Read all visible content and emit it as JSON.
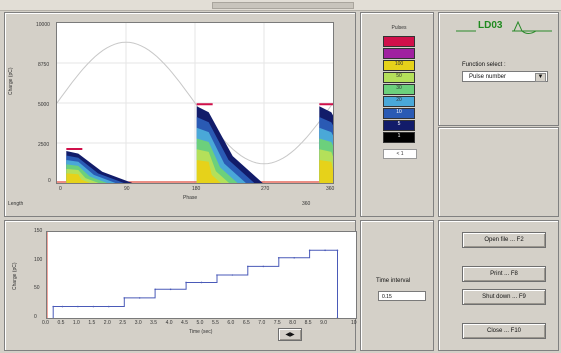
{
  "logo": {
    "text": "LD03"
  },
  "top_chart": {
    "ylabel": "Charge (pC)",
    "xlabel": "Phase",
    "y_ticks": [
      "10000",
      "8750",
      "5000",
      "2500",
      "0"
    ],
    "x_ticks": [
      "0",
      "90",
      "180",
      "270",
      "360"
    ],
    "corner_label": "Length"
  },
  "legend": {
    "title": "Pulses",
    "entries": [
      {
        "color": "#d0104a",
        "label": ""
      },
      {
        "color": "#a020a0",
        "label": ""
      },
      {
        "color": "#e6d21a",
        "label": "100"
      },
      {
        "color": "#b4e05a",
        "label": "50"
      },
      {
        "color": "#6cd07c",
        "label": "30"
      },
      {
        "color": "#4aa8d8",
        "label": "20"
      },
      {
        "color": "#2a5ab4",
        "label": "10"
      },
      {
        "color": "#121c6a",
        "label": "5"
      },
      {
        "color": "#000000",
        "label": "1"
      }
    ],
    "bottom_label": "< 1"
  },
  "function_select": {
    "label": "Function select :",
    "value": "Pulse number"
  },
  "bottom_chart": {
    "ylabel": "Charge (pC)",
    "xlabel": "Time (sec)",
    "y_ticks": [
      "150",
      "100",
      "50",
      "0"
    ],
    "x_ticks": [
      "0.0",
      "0.5",
      "1.0",
      "1.5",
      "2.0",
      "2.5",
      "3.0",
      "3.5",
      "4.0",
      "4.5",
      "5.0",
      "5.5",
      "6.0",
      "6.5",
      "7.0",
      "7.5",
      "8.0",
      "8.5",
      "9.0",
      "10"
    ]
  },
  "time_interval": {
    "label": "Time interval",
    "value": "0.15"
  },
  "nav_button": {
    "label": "◀▶"
  },
  "buttons": {
    "open_file": "Open file ... F2",
    "print": "Print ... F8",
    "shut_down": "Shut down ... F9",
    "close": "Close ... F10"
  },
  "chart_data": [
    {
      "type": "heatmap",
      "title": "",
      "xlabel": "Phase",
      "ylabel": "Charge (pC)",
      "xlim": [
        0,
        360
      ],
      "ylim": [
        0,
        10000
      ],
      "description_series": [
        {
          "name": "cluster",
          "x_center": 20,
          "y_peak": 2000
        },
        {
          "name": "cluster",
          "x_center": 190,
          "y_peak": 4800
        },
        {
          "name": "cluster",
          "x_center": 350,
          "y_peak": 4800
        }
      ]
    },
    {
      "type": "line",
      "title": "",
      "xlabel": "Time (sec)",
      "ylabel": "Charge (pC)",
      "xlim": [
        0,
        10
      ],
      "ylim": [
        0,
        150
      ],
      "x": [
        0.2,
        0.5,
        1.0,
        1.5,
        2.0,
        2.5,
        3.0,
        3.5,
        4.0,
        4.5,
        5.0,
        5.5,
        6.0,
        6.5,
        7.0,
        7.5,
        8.0,
        8.5,
        9.0,
        9.4,
        9.4
      ],
      "values": [
        20,
        20,
        20,
        20,
        20,
        35,
        35,
        50,
        50,
        62,
        62,
        75,
        75,
        90,
        90,
        105,
        105,
        118,
        118,
        118,
        0
      ]
    }
  ]
}
